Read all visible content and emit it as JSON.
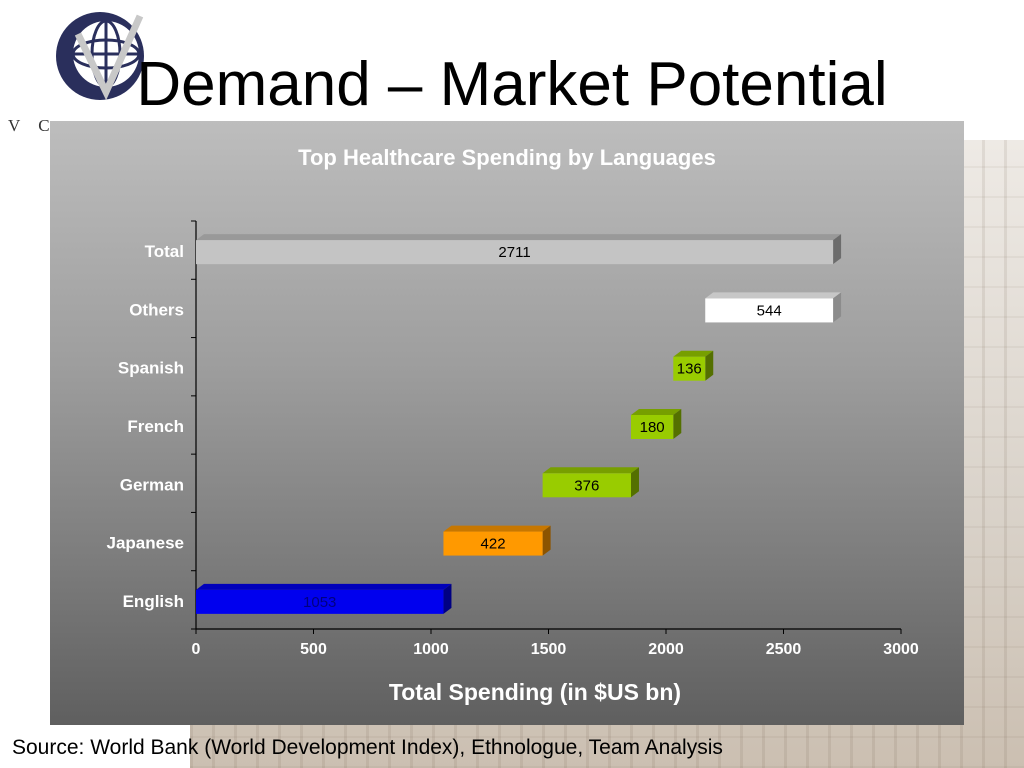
{
  "slide": {
    "title": "Demand – Market Potential",
    "logo_text": "V C",
    "source": "Source: World Bank (World Development Index), Ethnologue, Team Analysis"
  },
  "chart_data": {
    "type": "bar",
    "subtype": "waterfall-horizontal",
    "title": "Top Healthcare Spending by Languages",
    "xlabel": "Total Spending (in $US bn)",
    "ylabel": "",
    "xlim": [
      0,
      3000
    ],
    "xticks": [
      "0",
      "500",
      "1000",
      "1500",
      "2000",
      "2500",
      "3000"
    ],
    "categories": [
      "Total",
      "Others",
      "Spanish",
      "French",
      "German",
      "Japanese",
      "English"
    ],
    "values": [
      2711,
      544,
      136,
      180,
      376,
      422,
      1053
    ],
    "starts": [
      0,
      2167,
      2031,
      1851,
      1475,
      1053,
      0
    ],
    "colors": [
      "#c4c4c4",
      "#ffffff",
      "#99cc00",
      "#99cc00",
      "#99cc00",
      "#ff9900",
      "#0000ee"
    ],
    "label_colors": [
      "#000000",
      "#000000",
      "#000000",
      "#000000",
      "#000000",
      "#000000",
      "#000080"
    ],
    "grid": false,
    "legend": "none"
  }
}
